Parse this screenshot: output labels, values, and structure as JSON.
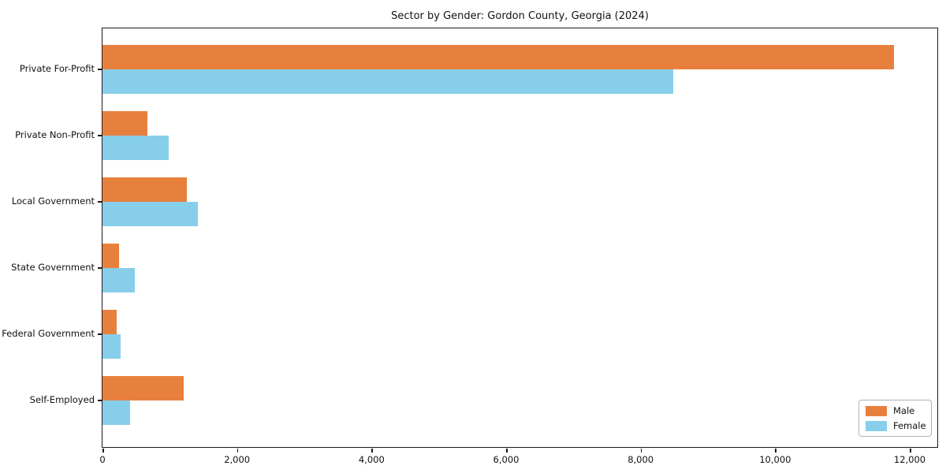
{
  "title": "Sector by Gender: Gordon County, Georgia (2024)",
  "chart_data": {
    "type": "bar",
    "orientation": "horizontal",
    "title": "Sector by Gender: Gordon County, Georgia (2024)",
    "xlabel": "",
    "ylabel": "",
    "categories": [
      "Private For-Profit",
      "Private Non-Profit",
      "Local Government",
      "State Government",
      "Federal Government",
      "Self-Employed"
    ],
    "series": [
      {
        "name": "Male",
        "color": "#E8803D",
        "values": [
          11765,
          665,
          1255,
          245,
          210,
          1205
        ]
      },
      {
        "name": "Female",
        "color": "#87CEEB",
        "values": [
          8490,
          985,
          1420,
          480,
          270,
          410
        ]
      }
    ],
    "xlim": [
      0,
      12410
    ],
    "xticks": [
      0,
      2000,
      4000,
      6000,
      8000,
      10000,
      12000
    ],
    "xtick_labels": [
      "0",
      "2,000",
      "4,000",
      "6,000",
      "8,000",
      "10,000",
      "12,000"
    ],
    "grid": false,
    "legend": {
      "position": "lower right"
    }
  }
}
